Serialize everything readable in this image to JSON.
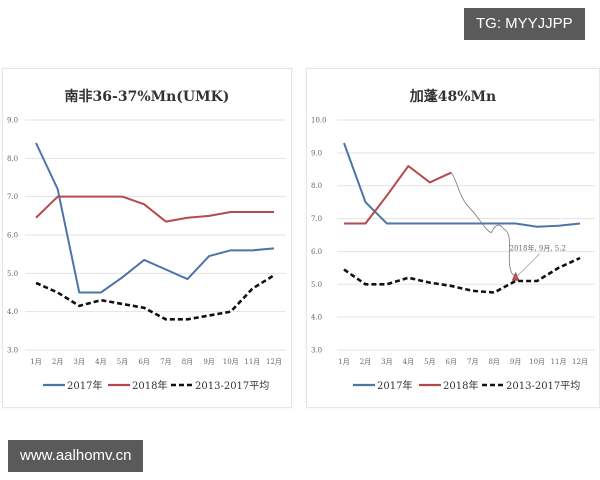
{
  "watermarks": {
    "top_right": "TG: MYYJJPP",
    "bottom_left": "www.aalhomv.cn"
  },
  "colors": {
    "series_2017": "#4e74a8",
    "series_2018": "#b54a4c",
    "series_avg": "#111111",
    "grid": "#e3e3e3"
  },
  "chart_data": [
    {
      "type": "line",
      "title": "南非36-37%Mn(UMK)",
      "xlabel": "",
      "ylabel": "",
      "ylim": [
        3.0,
        9.0
      ],
      "yticks": [
        "9.0",
        "8.0",
        "7.0",
        "6.0",
        "5.0",
        "4.0",
        "3.0"
      ],
      "grid": true,
      "legend_position": "bottom",
      "categories": [
        "1月",
        "2月",
        "3月",
        "4月",
        "5月",
        "6月",
        "7月",
        "8月",
        "9月",
        "10月",
        "11月",
        "12月"
      ],
      "series": [
        {
          "name": "2017年",
          "style": "solid",
          "values": [
            8.4,
            7.2,
            4.5,
            4.5,
            4.9,
            5.35,
            5.1,
            4.85,
            5.45,
            5.6,
            5.6,
            5.65
          ]
        },
        {
          "name": "2018年",
          "style": "solid",
          "values": [
            6.45,
            7.0,
            7.0,
            7.0,
            7.0,
            6.8,
            6.35,
            6.45,
            6.5,
            6.6,
            6.6,
            6.6
          ]
        },
        {
          "name": "2013-2017平均",
          "style": "dashed",
          "values": [
            4.75,
            4.5,
            4.15,
            4.3,
            4.2,
            4.1,
            3.8,
            3.8,
            3.9,
            4.0,
            4.6,
            4.95
          ]
        }
      ]
    },
    {
      "type": "line",
      "title": "加蓬48%Mn",
      "xlabel": "",
      "ylabel": "",
      "ylim": [
        3.0,
        10.0
      ],
      "yticks": [
        "10.0",
        "9.0",
        "8.0",
        "7.0",
        "6.0",
        "5.0",
        "4.0",
        "3.0"
      ],
      "grid": true,
      "legend_position": "bottom",
      "categories": [
        "1月",
        "2月",
        "3月",
        "4月",
        "5月",
        "6月",
        "7月",
        "8月",
        "9月",
        "10月",
        "11月",
        "12月"
      ],
      "series": [
        {
          "name": "2017年",
          "style": "solid",
          "values": [
            9.3,
            7.5,
            6.85,
            6.85,
            6.85,
            6.85,
            6.85,
            6.85,
            6.85,
            6.75,
            6.78,
            6.85
          ]
        },
        {
          "name": "2018年",
          "style": "solid",
          "values": [
            6.85,
            6.85,
            7.7,
            8.6,
            8.1,
            8.4,
            null,
            null,
            5.2,
            null,
            null,
            null
          ]
        },
        {
          "name": "2013-2017平均",
          "style": "dashed",
          "values": [
            5.45,
            5.0,
            5.0,
            5.2,
            5.05,
            4.95,
            4.8,
            4.75,
            5.1,
            5.1,
            5.5,
            5.8
          ]
        }
      ],
      "annotations": [
        {
          "text": "2018年, 9月, 5.2",
          "x": "9月",
          "y": 5.2
        }
      ]
    }
  ]
}
